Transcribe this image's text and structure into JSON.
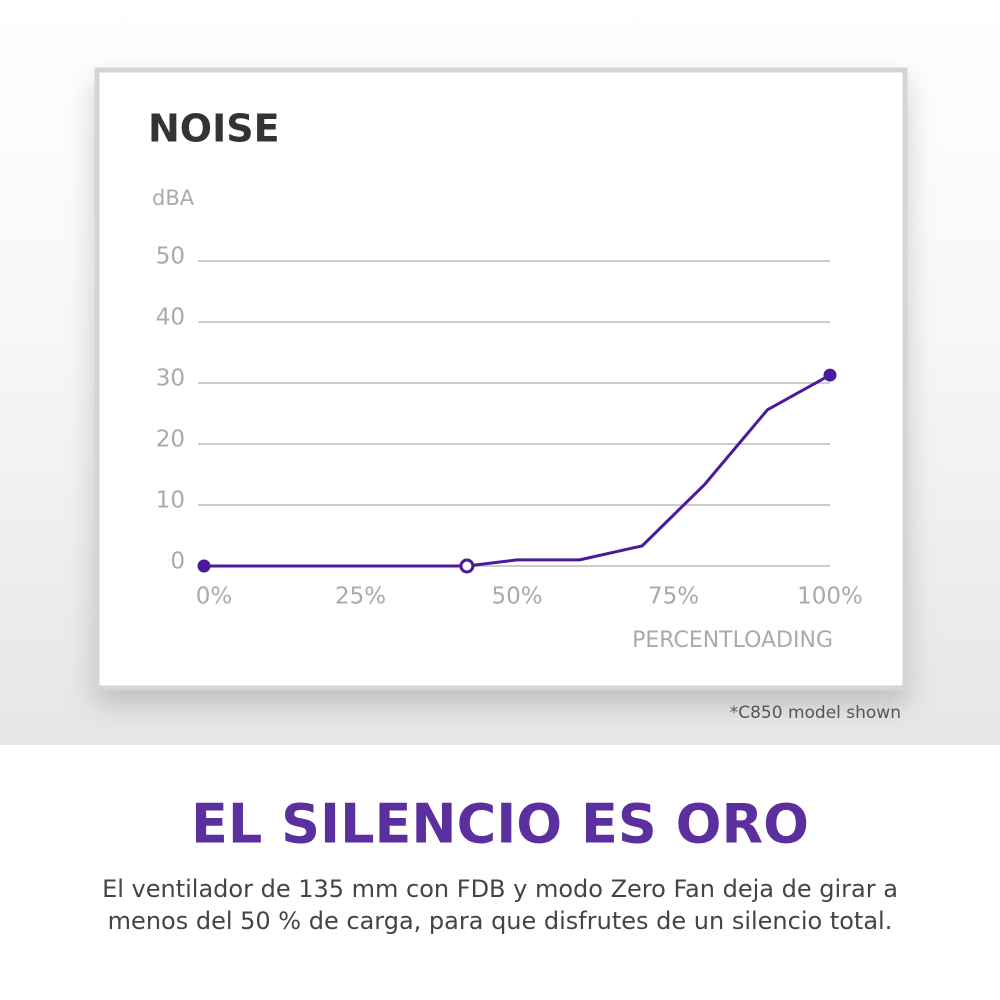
{
  "chart_data": {
    "type": "line",
    "title": "NOISE",
    "y_label": "dBA",
    "x_label": "PERCENTLOADING",
    "x": [
      0,
      42,
      50,
      60,
      70,
      80,
      90,
      100
    ],
    "series": [
      {
        "color": "#4b1a9c",
        "values": [
          0,
          0,
          1,
          1,
          3.3,
          13.4,
          25.6,
          31.3
        ],
        "markers": [
          "filled",
          "hollow",
          null,
          null,
          null,
          null,
          null,
          "filled"
        ]
      }
    ],
    "xlim": [
      0,
      100
    ],
    "ylim": [
      0,
      50
    ],
    "xticks": [
      {
        "value": 0,
        "label": "0%"
      },
      {
        "value": 25,
        "label": "25%"
      },
      {
        "value": 50,
        "label": "50%"
      },
      {
        "value": 75,
        "label": "75%"
      },
      {
        "value": 100,
        "label": "100%"
      }
    ],
    "yticks": [
      0,
      10,
      20,
      30,
      40,
      50
    ],
    "grid": true
  },
  "footnote": "*C850 model shown",
  "headline": "EL SILENCIO ES ORO",
  "body": [
    "El ventilador de 135 mm con FDB y modo Zero Fan deja de girar a",
    "menos del 50 % de carga, para que disfrutes de un silencio total."
  ]
}
